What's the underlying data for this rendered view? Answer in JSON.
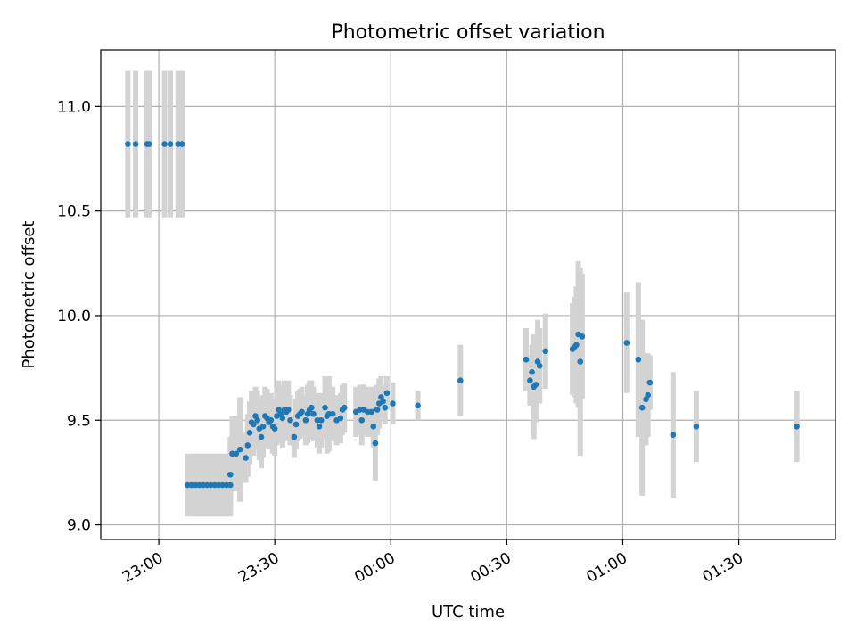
{
  "chart_data": {
    "type": "scatter",
    "title": "Photometric offset variation",
    "xlabel": "UTC time",
    "ylabel": "Photometric offset",
    "x_is_time": true,
    "xlim": [
      "22:45",
      "01:55"
    ],
    "ylim": [
      8.93,
      11.27
    ],
    "x_ticks": [
      "23:00",
      "23:30",
      "00:00",
      "00:30",
      "01:00",
      "01:30"
    ],
    "y_ticks": [
      "9.0",
      "9.5",
      "10.0",
      "10.5",
      "11.0"
    ],
    "grid": true,
    "colors": {
      "point": "#1f77b4",
      "errorbar": "#d3d3d3",
      "grid": "#b0b0b0"
    },
    "series": [
      {
        "points": [
          [
            "22:52",
            10.82,
            0.35
          ],
          [
            "22:54",
            10.82,
            0.35
          ],
          [
            "22:57",
            10.82,
            0.35
          ],
          [
            "22:57.5",
            10.82,
            0.35
          ],
          [
            "23:01.5",
            10.82,
            0.35
          ],
          [
            "23:03",
            10.82,
            0.35
          ],
          [
            "23:05",
            10.82,
            0.35
          ],
          [
            "23:06",
            10.82,
            0.35
          ],
          [
            "23:07.5",
            9.19,
            0.15
          ],
          [
            "23:08.5",
            9.19,
            0.15
          ],
          [
            "23:09.5",
            9.19,
            0.15
          ],
          [
            "23:10.5",
            9.19,
            0.15
          ],
          [
            "23:11.5",
            9.19,
            0.15
          ],
          [
            "23:12.5",
            9.19,
            0.15
          ],
          [
            "23:13.5",
            9.19,
            0.15
          ],
          [
            "23:14.5",
            9.19,
            0.15
          ],
          [
            "23:15.5",
            9.19,
            0.15
          ],
          [
            "23:16.5",
            9.19,
            0.15
          ],
          [
            "23:17.5",
            9.19,
            0.15
          ],
          [
            "23:18.5",
            9.19,
            0.15
          ],
          [
            "23:18.5",
            9.24,
            0.18
          ],
          [
            "23:19",
            9.34,
            0.18
          ],
          [
            "23:20",
            9.34,
            0.18
          ],
          [
            "23:21",
            9.36,
            0.25
          ],
          [
            "23:22.5",
            9.32,
            0.12
          ],
          [
            "23:23",
            9.38,
            0.15
          ],
          [
            "23:23.5",
            9.44,
            0.15
          ],
          [
            "23:24",
            9.49,
            0.15
          ],
          [
            "23:24.5",
            9.48,
            0.15
          ],
          [
            "23:25",
            9.52,
            0.14
          ],
          [
            "23:25.5",
            9.5,
            0.14
          ],
          [
            "23:26",
            9.46,
            0.15
          ],
          [
            "23:26.5",
            9.42,
            0.15
          ],
          [
            "23:27",
            9.47,
            0.15
          ],
          [
            "23:27.5",
            9.52,
            0.14
          ],
          [
            "23:28",
            9.51,
            0.14
          ],
          [
            "23:28.5",
            9.49,
            0.13
          ],
          [
            "23:29",
            9.5,
            0.13
          ],
          [
            "23:29.5",
            9.47,
            0.13
          ],
          [
            "23:30",
            9.46,
            0.13
          ],
          [
            "23:30.5",
            9.52,
            0.14
          ],
          [
            "23:31",
            9.55,
            0.14
          ],
          [
            "23:31.5",
            9.53,
            0.14
          ],
          [
            "23:32",
            9.51,
            0.14
          ],
          [
            "23:32.5",
            9.55,
            0.14
          ],
          [
            "23:33",
            9.54,
            0.14
          ],
          [
            "23:33.5",
            9.55,
            0.14
          ],
          [
            "23:34",
            9.5,
            0.12
          ],
          [
            "23:35",
            9.42,
            0.1
          ],
          [
            "23:35.5",
            9.48,
            0.12
          ],
          [
            "23:36",
            9.52,
            0.12
          ],
          [
            "23:36.5",
            9.53,
            0.12
          ],
          [
            "23:37",
            9.54,
            0.12
          ],
          [
            "23:38",
            9.5,
            0.12
          ],
          [
            "23:38.5",
            9.53,
            0.14
          ],
          [
            "23:39",
            9.55,
            0.14
          ],
          [
            "23:39.5",
            9.56,
            0.13
          ],
          [
            "23:40",
            9.53,
            0.13
          ],
          [
            "23:41",
            9.5,
            0.13
          ],
          [
            "23:41.5",
            9.47,
            0.13
          ],
          [
            "23:42",
            9.5,
            0.13
          ],
          [
            "23:43",
            9.56,
            0.15
          ],
          [
            "23:43.5",
            9.52,
            0.18
          ],
          [
            "23:44",
            9.53,
            0.18
          ],
          [
            "23:45",
            9.53,
            0.13
          ],
          [
            "23:46",
            9.5,
            0.12
          ],
          [
            "23:47",
            9.51,
            0.12
          ],
          [
            "23:47.5",
            9.55,
            0.12
          ],
          [
            "23:48",
            9.56,
            0.12
          ],
          [
            "23:51",
            9.54,
            0.12
          ],
          [
            "23:52",
            9.55,
            0.12
          ],
          [
            "23:52.5",
            9.5,
            0.12
          ],
          [
            "23:53",
            9.55,
            0.12
          ],
          [
            "23:54",
            9.54,
            0.12
          ],
          [
            "23:55",
            9.54,
            0.12
          ],
          [
            "23:55.5",
            9.47,
            0.1
          ],
          [
            "23:56",
            9.39,
            0.18
          ],
          [
            "23:56.5",
            9.55,
            0.12
          ],
          [
            "23:57",
            9.58,
            0.12
          ],
          [
            "23:57.5",
            9.61,
            0.1
          ],
          [
            "23:58",
            9.59,
            0.08
          ],
          [
            "23:58.5",
            9.56,
            0.08
          ],
          [
            "23:59",
            9.63,
            0.08
          ],
          [
            "00:00.5",
            9.58,
            0.1
          ],
          [
            "00:07",
            9.57,
            0.07
          ],
          [
            "00:18",
            9.69,
            0.17
          ],
          [
            "00:35",
            9.79,
            0.15
          ],
          [
            "00:36",
            9.69,
            0.12
          ],
          [
            "00:36.5",
            9.73,
            0.13
          ],
          [
            "00:37",
            9.66,
            0.25
          ],
          [
            "00:37.5",
            9.67,
            0.18
          ],
          [
            "00:38",
            9.78,
            0.2
          ],
          [
            "00:38.5",
            9.76,
            0.18
          ],
          [
            "00:40",
            9.83,
            0.18
          ],
          [
            "00:47",
            9.84,
            0.22
          ],
          [
            "00:47.5",
            9.85,
            0.24
          ],
          [
            "00:48",
            9.86,
            0.28
          ],
          [
            "00:48.5",
            9.91,
            0.35
          ],
          [
            "00:49",
            9.78,
            0.45
          ],
          [
            "00:49.5",
            9.9,
            0.3
          ],
          [
            "01:01",
            9.87,
            0.24
          ],
          [
            "01:04",
            9.79,
            0.37
          ],
          [
            "01:05",
            9.56,
            0.42
          ],
          [
            "01:06",
            9.6,
            0.22
          ],
          [
            "01:06.5",
            9.62,
            0.2
          ],
          [
            "01:07",
            9.68,
            0.13
          ],
          [
            "01:13",
            9.43,
            0.3
          ],
          [
            "01:19",
            9.47,
            0.17
          ],
          [
            "01:45",
            9.47,
            0.17
          ]
        ]
      }
    ]
  }
}
